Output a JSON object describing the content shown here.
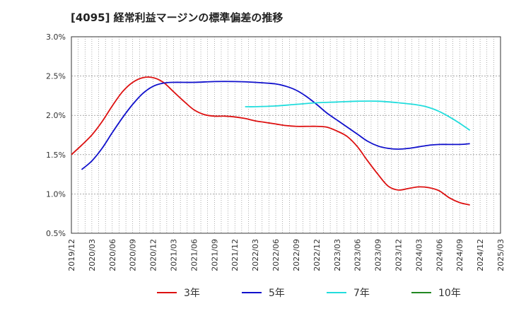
{
  "chart_data": {
    "type": "line",
    "title": "[4095]  経常利益マージンの標準偏差の推移",
    "xlabel": "",
    "ylabel": "",
    "y_ticks": [
      "0.5%",
      "1.0%",
      "1.5%",
      "2.0%",
      "2.5%",
      "3.0%"
    ],
    "ylim": [
      0.5,
      3.0
    ],
    "x_ticks": [
      "2019/12",
      "2020/03",
      "2020/06",
      "2020/09",
      "2020/12",
      "2021/03",
      "2021/06",
      "2021/09",
      "2021/12",
      "2022/03",
      "2022/06",
      "2022/09",
      "2022/12",
      "2023/03",
      "2023/06",
      "2023/09",
      "2023/12",
      "2024/03",
      "2024/06",
      "2024/09",
      "2024/12",
      "2025/03"
    ],
    "grid": true,
    "legend_position": "bottom",
    "series": [
      {
        "name": "3年",
        "color": "#dd1111",
        "points": [
          [
            0,
            1.5
          ],
          [
            1,
            1.62
          ],
          [
            2,
            1.75
          ],
          [
            3,
            1.92
          ],
          [
            4,
            2.12
          ],
          [
            5,
            2.3
          ],
          [
            6,
            2.42
          ],
          [
            7,
            2.48
          ],
          [
            8,
            2.48
          ],
          [
            9,
            2.42
          ],
          [
            10,
            2.3
          ],
          [
            11,
            2.18
          ],
          [
            12,
            2.07
          ],
          [
            13,
            2.01
          ],
          [
            14,
            1.99
          ],
          [
            15,
            1.99
          ],
          [
            16,
            1.98
          ],
          [
            17,
            1.96
          ],
          [
            18,
            1.93
          ],
          [
            19,
            1.91
          ],
          [
            20,
            1.89
          ],
          [
            21,
            1.87
          ],
          [
            22,
            1.86
          ],
          [
            23,
            1.86
          ],
          [
            24,
            1.86
          ],
          [
            25,
            1.85
          ],
          [
            26,
            1.8
          ],
          [
            27,
            1.73
          ],
          [
            28,
            1.6
          ],
          [
            29,
            1.42
          ],
          [
            30,
            1.25
          ],
          [
            31,
            1.1
          ],
          [
            32,
            1.05
          ],
          [
            33,
            1.07
          ],
          [
            34,
            1.09
          ],
          [
            35,
            1.08
          ],
          [
            36,
            1.04
          ],
          [
            37,
            0.95
          ],
          [
            38,
            0.89
          ],
          [
            39,
            0.86
          ]
        ]
      },
      {
        "name": "5年",
        "color": "#1111cc",
        "points": [
          [
            1,
            1.31
          ],
          [
            2,
            1.42
          ],
          [
            3,
            1.58
          ],
          [
            4,
            1.78
          ],
          [
            5,
            1.97
          ],
          [
            6,
            2.14
          ],
          [
            7,
            2.28
          ],
          [
            8,
            2.37
          ],
          [
            9,
            2.41
          ],
          [
            10,
            2.42
          ],
          [
            12,
            2.42
          ],
          [
            14,
            2.43
          ],
          [
            16,
            2.43
          ],
          [
            18,
            2.42
          ],
          [
            20,
            2.4
          ],
          [
            21,
            2.37
          ],
          [
            22,
            2.32
          ],
          [
            23,
            2.24
          ],
          [
            24,
            2.14
          ],
          [
            25,
            2.03
          ],
          [
            26,
            1.94
          ],
          [
            27,
            1.85
          ],
          [
            28,
            1.76
          ],
          [
            29,
            1.67
          ],
          [
            30,
            1.61
          ],
          [
            31,
            1.58
          ],
          [
            32,
            1.57
          ],
          [
            33,
            1.58
          ],
          [
            34,
            1.6
          ],
          [
            35,
            1.62
          ],
          [
            36,
            1.63
          ],
          [
            38,
            1.63
          ],
          [
            39,
            1.64
          ]
        ]
      },
      {
        "name": "7年",
        "color": "#22dddd",
        "points": [
          [
            17,
            2.11
          ],
          [
            18,
            2.11
          ],
          [
            20,
            2.12
          ],
          [
            22,
            2.14
          ],
          [
            24,
            2.16
          ],
          [
            26,
            2.17
          ],
          [
            28,
            2.18
          ],
          [
            30,
            2.18
          ],
          [
            32,
            2.16
          ],
          [
            34,
            2.13
          ],
          [
            35,
            2.1
          ],
          [
            36,
            2.05
          ],
          [
            37,
            1.98
          ],
          [
            38,
            1.9
          ],
          [
            39,
            1.81
          ]
        ]
      },
      {
        "name": "10年",
        "color": "#228822",
        "points": []
      }
    ]
  }
}
